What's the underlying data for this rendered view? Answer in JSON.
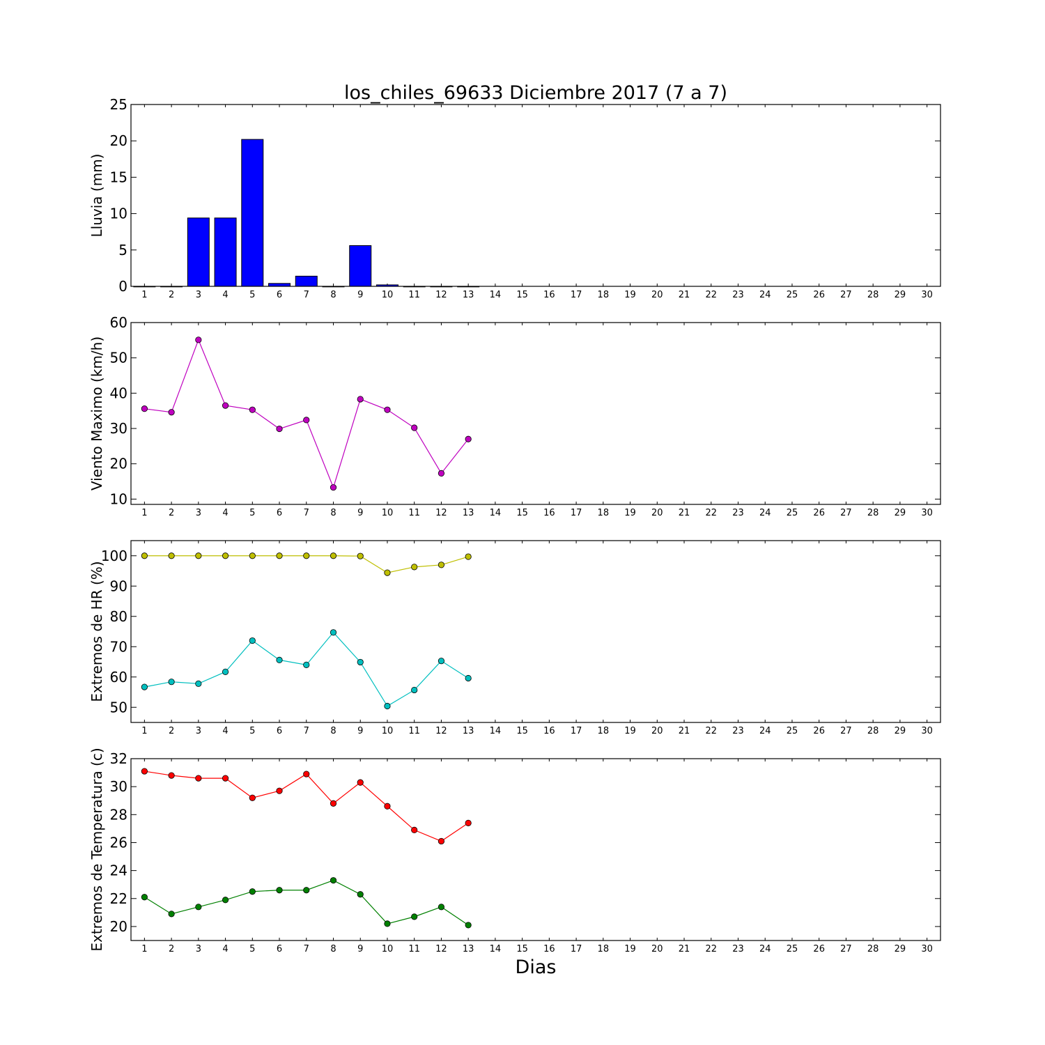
{
  "title": "los_chiles_69633 Diciembre 2017  (7 a 7)",
  "xlabel": "Dias",
  "chart_data": [
    {
      "type": "bar",
      "ylabel": "Lluvia (mm)",
      "ylim": [
        0,
        25
      ],
      "yticks": [
        0,
        5,
        10,
        15,
        20,
        25
      ],
      "xlim": [
        0.5,
        30.5
      ],
      "x": [
        1,
        2,
        3,
        4,
        5,
        6,
        7,
        8,
        9,
        10,
        11,
        12,
        13
      ],
      "series": [
        {
          "color": "#0000ff",
          "values": [
            0,
            0,
            9.4,
            9.4,
            20.2,
            0.4,
            1.4,
            0,
            5.6,
            0.2,
            0,
            0,
            0
          ]
        }
      ]
    },
    {
      "type": "line",
      "ylabel": "Viento Maximo (km/h)",
      "ylim": [
        8.5,
        60
      ],
      "yticks": [
        10,
        20,
        30,
        40,
        50,
        60
      ],
      "xlim": [
        0.5,
        30.5
      ],
      "x": [
        1,
        2,
        3,
        4,
        5,
        6,
        7,
        8,
        9,
        10,
        11,
        12,
        13
      ],
      "series": [
        {
          "color": "#bf00bf",
          "values": [
            35.6,
            34.6,
            55.1,
            36.5,
            35.3,
            29.9,
            32.4,
            13.3,
            38.3,
            35.3,
            30.2,
            17.3,
            27.0
          ]
        }
      ]
    },
    {
      "type": "line",
      "ylabel": "Extremos de HR (%)",
      "ylim": [
        45,
        105
      ],
      "yticks": [
        50,
        60,
        70,
        80,
        90,
        100
      ],
      "xlim": [
        0.5,
        30.5
      ],
      "x": [
        1,
        2,
        3,
        4,
        5,
        6,
        7,
        8,
        9,
        10,
        11,
        12,
        13
      ],
      "series": [
        {
          "color": "#bfbf00",
          "values": [
            100,
            100,
            100,
            100,
            100,
            100,
            100,
            100,
            99.9,
            94.4,
            96.3,
            97.0,
            99.7
          ]
        },
        {
          "color": "#00bfbf",
          "values": [
            56.7,
            58.4,
            57.8,
            61.7,
            72.0,
            65.6,
            64.0,
            74.7,
            64.9,
            50.4,
            55.7,
            65.3,
            59.6
          ]
        }
      ]
    },
    {
      "type": "line",
      "ylabel": "Extremos de Temperatura (c)",
      "ylim": [
        19,
        32
      ],
      "yticks": [
        20,
        22,
        24,
        26,
        28,
        30,
        32
      ],
      "xlim": [
        0.5,
        30.5
      ],
      "x": [
        1,
        2,
        3,
        4,
        5,
        6,
        7,
        8,
        9,
        10,
        11,
        12,
        13
      ],
      "series": [
        {
          "color": "#ff0000",
          "values": [
            31.1,
            30.8,
            30.6,
            30.6,
            29.2,
            29.7,
            30.9,
            28.8,
            30.3,
            28.6,
            26.9,
            26.1,
            27.4
          ]
        },
        {
          "color": "#008000",
          "values": [
            22.1,
            20.9,
            21.4,
            21.9,
            22.5,
            22.6,
            22.6,
            23.3,
            22.3,
            20.2,
            20.7,
            21.4,
            20.1
          ]
        }
      ]
    }
  ],
  "xtick_labels": [
    "1",
    "2",
    "3",
    "4",
    "5",
    "6",
    "7",
    "8",
    "9",
    "10",
    "11",
    "12",
    "13",
    "14",
    "15",
    "16",
    "17",
    "18",
    "19",
    "20",
    "21",
    "22",
    "23",
    "24",
    "25",
    "26",
    "27",
    "28",
    "29",
    "30"
  ]
}
